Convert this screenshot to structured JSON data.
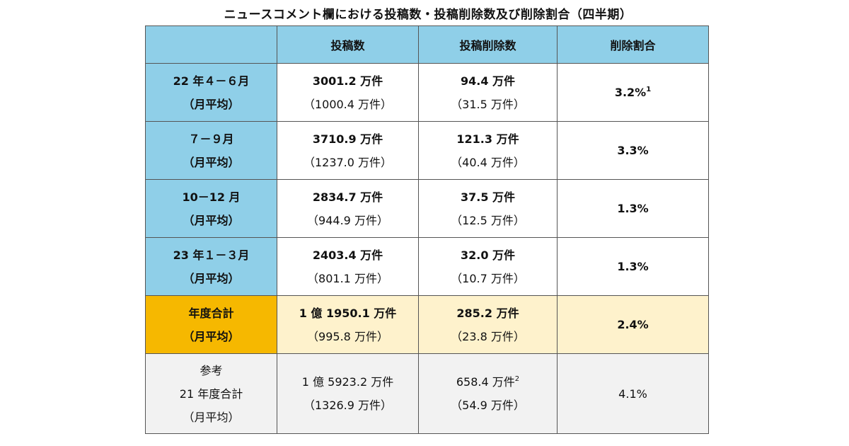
{
  "title": "ニュースコメント欄における投稿数・投稿削除数及び削除割合（四半期）",
  "headers": [
    "",
    "投稿数",
    "投稿削除数",
    "削除割合"
  ],
  "rows": [
    {
      "label1": "22 年４－６月",
      "label2": "（月平均）",
      "posts": "3001.2 万件",
      "posts_avg": "（1000.4 万件）",
      "deleted": "94.4 万件",
      "deleted_avg": "（31.5 万件）",
      "ratio": "3.2%",
      "ratio_note": "1"
    },
    {
      "label1": "７－９月",
      "label2": "（月平均）",
      "posts": "3710.9 万件",
      "posts_avg": "（1237.0 万件）",
      "deleted": "121.3 万件",
      "deleted_avg": "（40.4 万件）",
      "ratio": "3.3%",
      "ratio_note": ""
    },
    {
      "label1": "10－12 月",
      "label2": "（月平均）",
      "posts": "2834.7 万件",
      "posts_avg": "（944.9 万件）",
      "deleted": "37.5 万件",
      "deleted_avg": "（12.5 万件）",
      "ratio": "1.3%",
      "ratio_note": ""
    },
    {
      "label1": "23 年１－３月",
      "label2": "（月平均）",
      "posts": "2403.4 万件",
      "posts_avg": "（801.1 万件）",
      "deleted": "32.0 万件",
      "deleted_avg": "（10.7 万件）",
      "ratio": "1.3%",
      "ratio_note": ""
    }
  ],
  "total": {
    "label1": "年度合計",
    "label2": "（月平均）",
    "posts": "1 億 1950.1 万件",
    "posts_avg": "（995.8 万件）",
    "deleted": "285.2 万件",
    "deleted_avg": "（23.8 万件）",
    "ratio": "2.4%"
  },
  "reference": {
    "label1": "参考",
    "label2": "21 年度合計",
    "label3": "（月平均）",
    "posts": "1 億 5923.2 万件",
    "posts_avg": "（1326.9 万件）",
    "deleted": "658.4 万件",
    "deleted_note": "2",
    "deleted_avg": "（54.9 万件）",
    "ratio": "4.1%"
  },
  "colors": {
    "header_blue": "#8fcfe8",
    "total_orange": "#f6b800",
    "total_cream": "#fef2cc",
    "reference_gray": "#f2f2f2"
  }
}
